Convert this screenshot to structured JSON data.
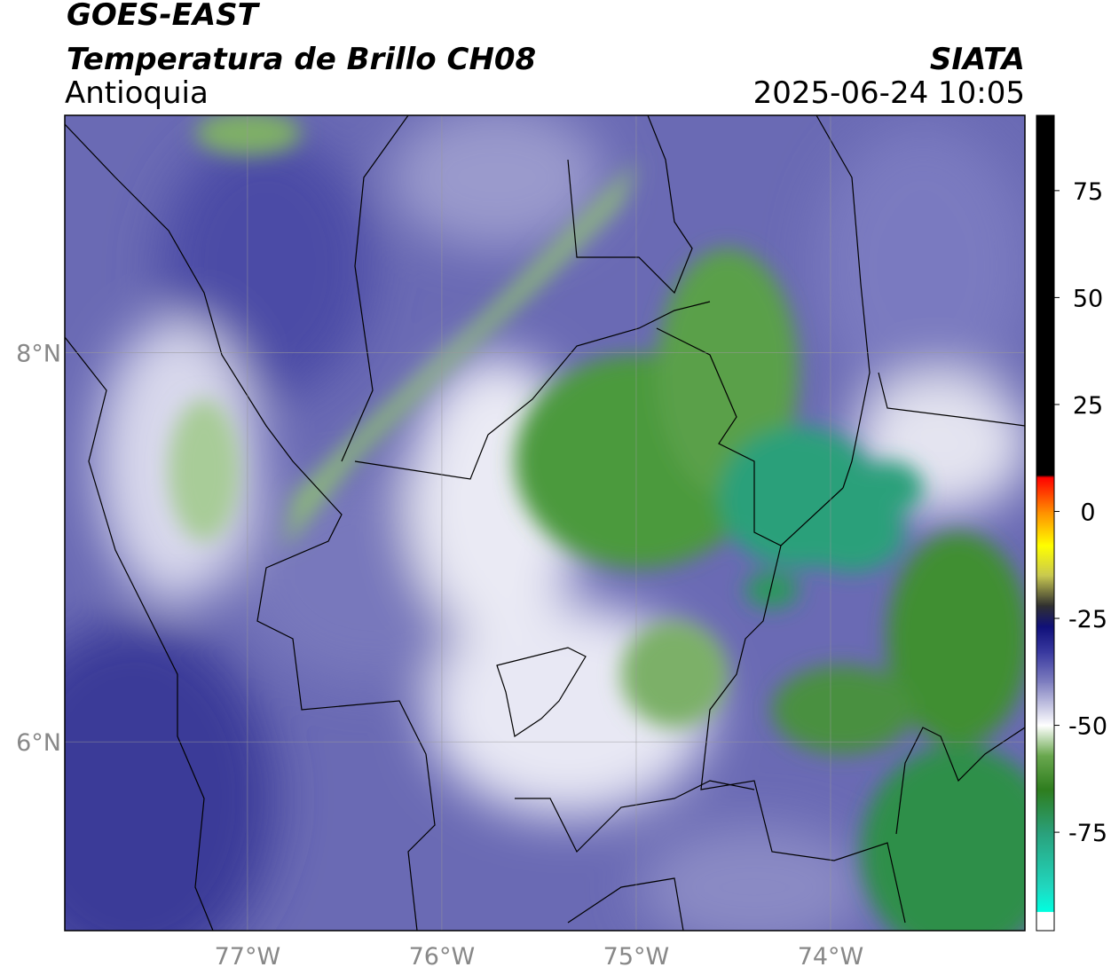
{
  "header": {
    "title": "GOES-EAST",
    "subtitle": "Temperatura de Brillo CH08",
    "region": "Antioquia",
    "source": "SIATA",
    "datetime": "2025-06-24 10:05"
  },
  "map": {
    "xlim": [
      -77.94,
      -73.0
    ],
    "ylim": [
      5.03,
      9.22
    ],
    "xticks": [
      {
        "value": -77,
        "label": "77°W"
      },
      {
        "value": -76,
        "label": "76°W"
      },
      {
        "value": -75,
        "label": "75°W"
      },
      {
        "value": -74,
        "label": "74°W"
      }
    ],
    "yticks": [
      {
        "value": 6,
        "label": "6°N"
      },
      {
        "value": 8,
        "label": "8°N"
      }
    ],
    "grid": true
  },
  "colorbar": {
    "lim": [
      -98,
      92.6
    ],
    "ticks": [
      -75,
      -50,
      -25,
      0,
      25,
      50,
      75
    ],
    "stops": [
      {
        "value": -98,
        "color": "#ffffff"
      },
      {
        "value": -93.6,
        "color": "#ffffff"
      },
      {
        "value": -93.5,
        "color": "#00ffe0"
      },
      {
        "value": -88,
        "color": "#20d8c0"
      },
      {
        "value": -75,
        "color": "#2aa07a"
      },
      {
        "value": -65,
        "color": "#2e7d1e"
      },
      {
        "value": -57,
        "color": "#6aa84f"
      },
      {
        "value": -50,
        "color": "#ffffff"
      },
      {
        "value": -40,
        "color": "#8080c0"
      },
      {
        "value": -33,
        "color": "#3a3aa0"
      },
      {
        "value": -27,
        "color": "#10107a"
      },
      {
        "value": -22,
        "color": "#303030"
      },
      {
        "value": -15,
        "color": "#c8c850"
      },
      {
        "value": -8,
        "color": "#ffff00"
      },
      {
        "value": 0,
        "color": "#ff8c00"
      },
      {
        "value": 8,
        "color": "#ff0000"
      },
      {
        "value": 8.5,
        "color": "#000000"
      },
      {
        "value": 92.6,
        "color": "#000000"
      }
    ]
  }
}
